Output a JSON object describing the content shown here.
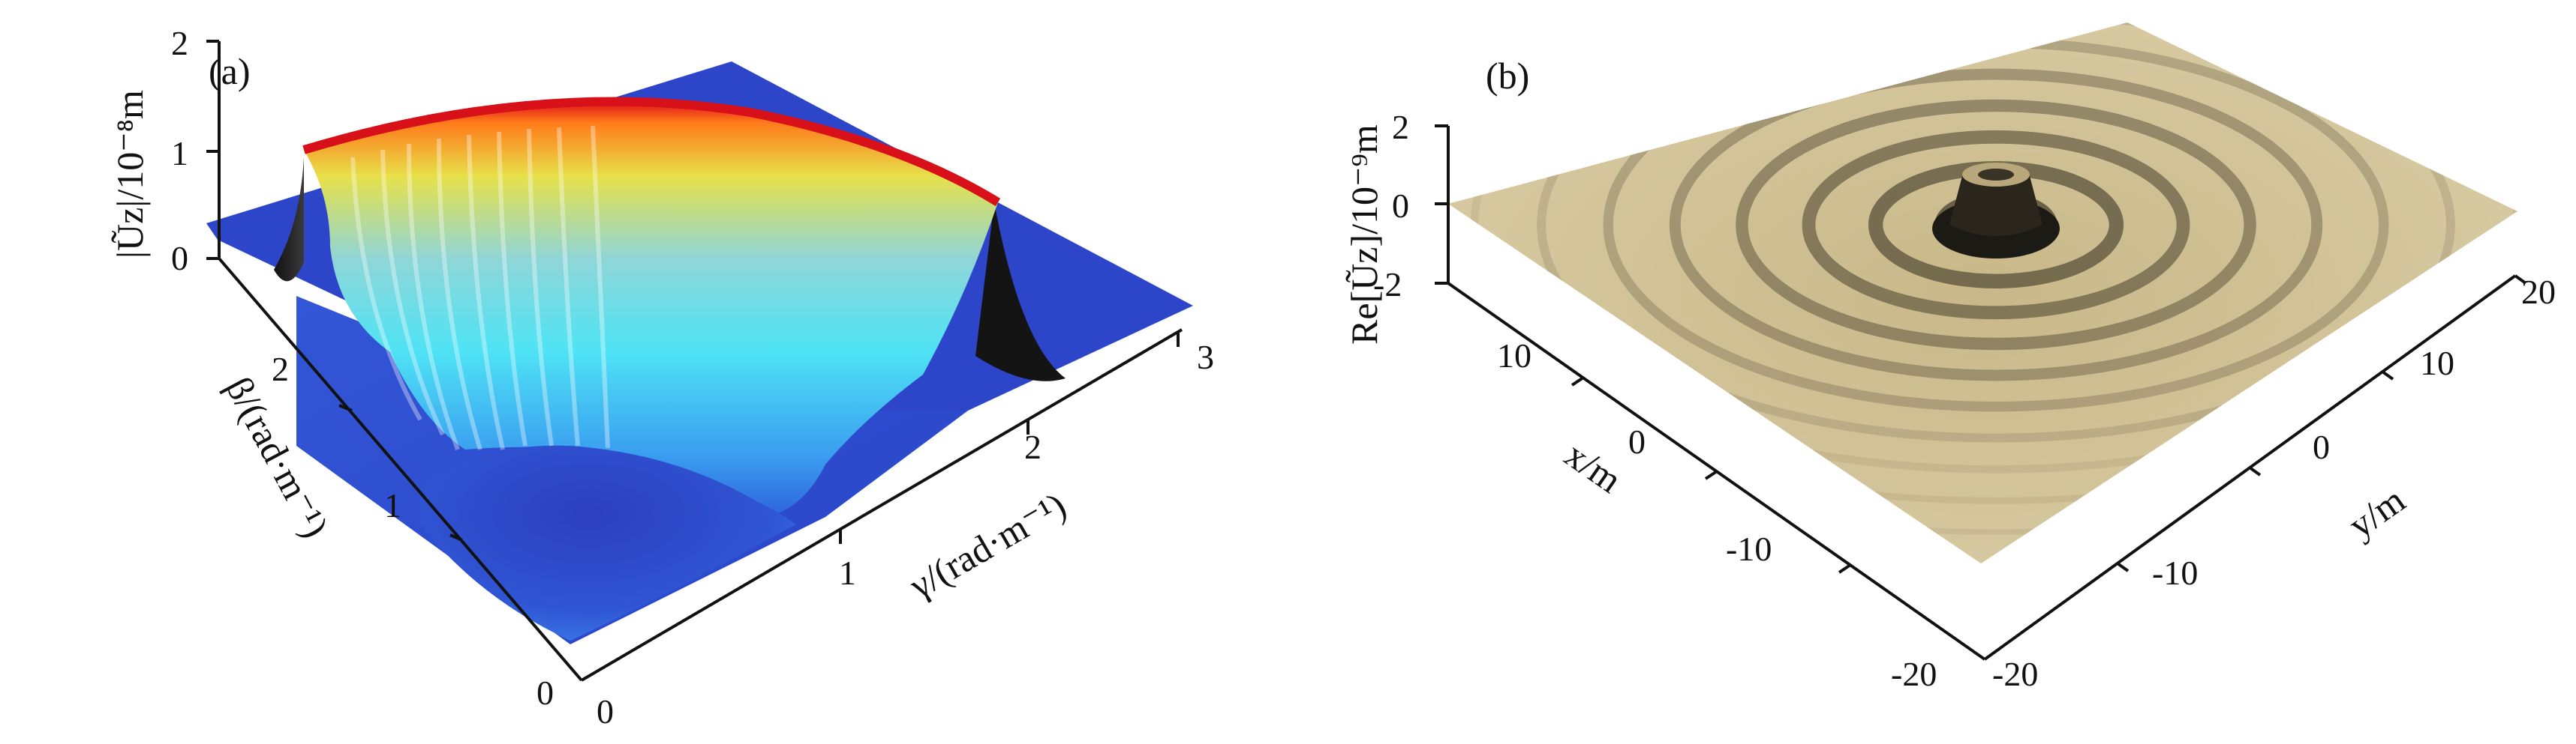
{
  "chart_data": [
    {
      "type": "surface",
      "panel_label": "(a)",
      "xlabel": "γ/(rad·m⁻¹)",
      "ylabel": "β/(rad·m⁻¹)",
      "zlabel": "|Ũz|/10⁻⁸m",
      "x_ticks": [
        "1",
        "2",
        "3"
      ],
      "y_ticks": [
        "0",
        "1",
        "2"
      ],
      "z_ticks": [
        "0",
        "1",
        "2"
      ],
      "x_origin_tick": "0",
      "xlim": [
        0,
        3
      ],
      "ylim": [
        0,
        3
      ],
      "zlim": [
        0,
        2
      ],
      "colormap": [
        "#2b3fc4",
        "#3a6ee8",
        "#43b8ef",
        "#4fe3f5",
        "#e7e04a",
        "#ff7a1a",
        "#e0101a"
      ],
      "surface": {
        "description_peak_ring_radius": 2.3,
        "peak_value": 1.3,
        "base_value": 0.2
      }
    },
    {
      "type": "surface",
      "panel_label": "(b)",
      "xlabel": "x/m",
      "ylabel": "y/m",
      "zlabel": "Re[Ũz]/10⁻⁹m",
      "x_ticks": [
        "-20",
        "-10",
        "0",
        "10"
      ],
      "y_ticks": [
        "-20",
        "-10",
        "0",
        "10",
        "20"
      ],
      "z_ticks": [
        "-2",
        "0",
        "2"
      ],
      "xlim": [
        -20,
        20
      ],
      "ylim": [
        -20,
        20
      ],
      "zlim": [
        -2,
        2
      ],
      "surface_color": "#c9b98c",
      "ripple_wavelength": 2.7
    }
  ]
}
